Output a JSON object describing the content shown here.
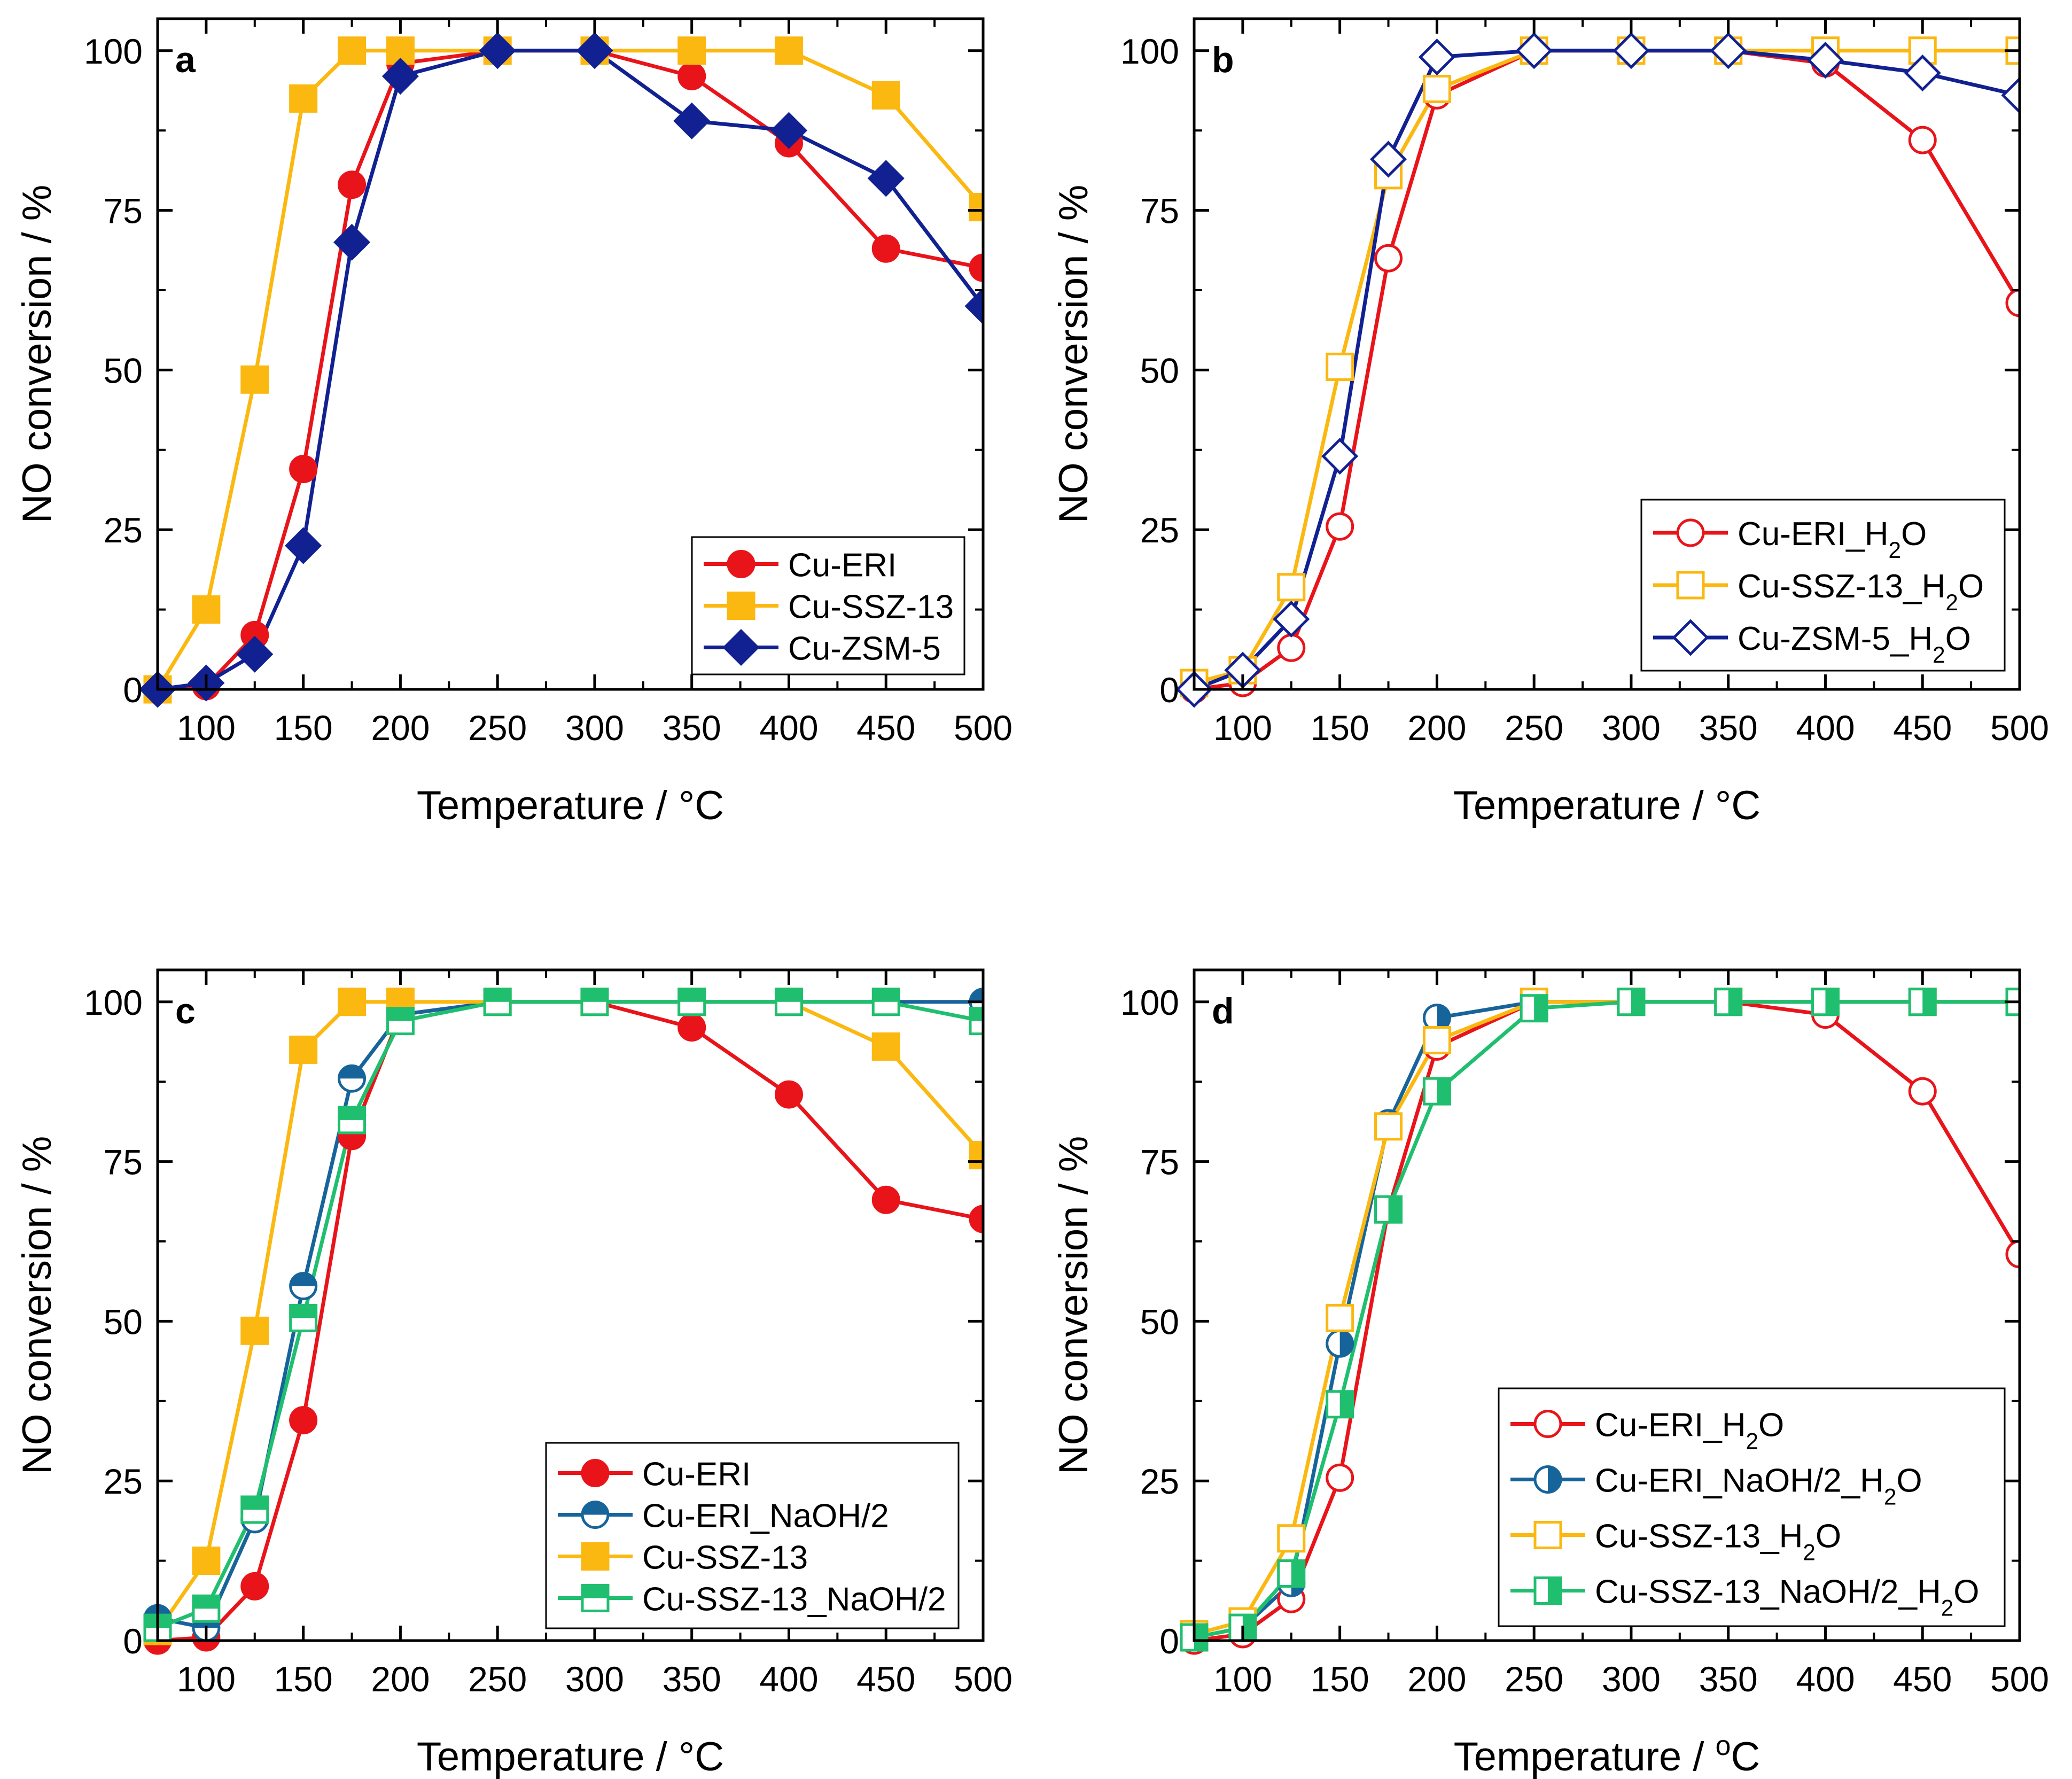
{
  "colors": {
    "red": "#e8141a",
    "yellow": "#fbb811",
    "navy": "#112191",
    "teal": "#17649b",
    "green": "#1fbf6f"
  },
  "chart_data": [
    {
      "type": "line",
      "panel": "a",
      "xlabel": "Temperature / °C",
      "ylabel": "NO conversion / %",
      "xlim": [
        75,
        500
      ],
      "ylim": [
        0,
        105
      ],
      "xticks": [
        100,
        150,
        200,
        250,
        300,
        350,
        400,
        450,
        500
      ],
      "yticks": [
        0,
        25,
        50,
        75,
        100
      ],
      "legend_position": "bottom-right",
      "series": [
        {
          "name": "Cu-ERI",
          "color": "red",
          "marker": "circle",
          "fill": "full",
          "x": [
            75,
            100,
            125,
            150,
            175,
            200,
            250,
            300,
            350,
            400,
            450,
            500
          ],
          "values": [
            0,
            0.5,
            8.5,
            34.5,
            79,
            98,
            100,
            100,
            96,
            85.5,
            69,
            66
          ]
        },
        {
          "name": "Cu-SSZ-13",
          "color": "yellow",
          "marker": "square",
          "fill": "full",
          "x": [
            75,
            100,
            125,
            150,
            175,
            200,
            250,
            300,
            350,
            400,
            450,
            500
          ],
          "values": [
            0,
            12.5,
            48.5,
            92.5,
            100,
            100,
            100,
            100,
            100,
            100,
            93,
            75.5
          ]
        },
        {
          "name": "Cu-ZSM-5",
          "color": "navy",
          "marker": "diamond",
          "fill": "full",
          "x": [
            75,
            100,
            125,
            150,
            175,
            200,
            250,
            300,
            350,
            400,
            450,
            500
          ],
          "values": [
            0,
            1,
            5.5,
            22.5,
            70,
            96,
            100,
            100,
            89,
            87.5,
            80,
            60
          ]
        }
      ]
    },
    {
      "type": "line",
      "panel": "b",
      "xlabel": "Temperature / °C",
      "ylabel": "NO conversion / %",
      "xlim": [
        75,
        500
      ],
      "ylim": [
        0,
        105
      ],
      "xticks": [
        100,
        150,
        200,
        250,
        300,
        350,
        400,
        450,
        500
      ],
      "yticks": [
        0,
        25,
        50,
        75,
        100
      ],
      "legend_position": "bottom-right",
      "series": [
        {
          "name": "Cu-ERI_H",
          "name_sub": "2",
          "name_suffix": "O",
          "color": "red",
          "marker": "circle",
          "fill": "none",
          "x": [
            75,
            100,
            125,
            150,
            175,
            200,
            250,
            300,
            350,
            400,
            450,
            500
          ],
          "values": [
            0,
            1,
            6.5,
            25.5,
            67.5,
            93,
            100,
            100,
            100,
            98,
            86,
            60.5
          ]
        },
        {
          "name": "Cu-SSZ-13_H",
          "name_sub": "2",
          "name_suffix": "O",
          "color": "yellow",
          "marker": "square",
          "fill": "none",
          "x": [
            75,
            100,
            125,
            150,
            175,
            200,
            250,
            300,
            350,
            400,
            450,
            500
          ],
          "values": [
            1,
            3,
            16,
            50.5,
            80.5,
            94,
            100,
            100,
            100,
            100,
            100,
            100
          ]
        },
        {
          "name": "Cu-ZSM-5_H",
          "name_sub": "2",
          "name_suffix": "O",
          "color": "navy",
          "marker": "diamond",
          "fill": "none",
          "x": [
            75,
            100,
            125,
            150,
            175,
            200,
            250,
            300,
            350,
            400,
            450,
            500
          ],
          "values": [
            0,
            3,
            11,
            36.5,
            83,
            99,
            100,
            100,
            100,
            98.5,
            96.5,
            93
          ]
        }
      ]
    },
    {
      "type": "line",
      "panel": "c",
      "xlabel": "Temperature / °C",
      "ylabel": "NO conversion / %",
      "xlim": [
        75,
        500
      ],
      "ylim": [
        0,
        105
      ],
      "xticks": [
        100,
        150,
        200,
        250,
        300,
        350,
        400,
        450,
        500
      ],
      "yticks": [
        0,
        25,
        50,
        75,
        100
      ],
      "legend_position": "bottom-right",
      "series": [
        {
          "name": "Cu-ERI",
          "color": "red",
          "marker": "circle",
          "fill": "full",
          "x": [
            75,
            100,
            125,
            150,
            175,
            200,
            250,
            300,
            350,
            400,
            450,
            500
          ],
          "values": [
            0,
            0.5,
            8.5,
            34.5,
            79,
            98,
            100,
            100,
            96,
            85.5,
            69,
            66
          ]
        },
        {
          "name": "Cu-ERI_NaOH/2",
          "color": "teal",
          "marker": "circle",
          "fill": "top",
          "x": [
            75,
            100,
            125,
            150,
            175,
            200,
            250,
            300,
            350,
            400,
            450,
            500
          ],
          "values": [
            3.5,
            2,
            19,
            55.5,
            88,
            98,
            100,
            100,
            100,
            100,
            100,
            100
          ]
        },
        {
          "name": "Cu-SSZ-13",
          "color": "yellow",
          "marker": "square",
          "fill": "full",
          "x": [
            75,
            100,
            125,
            150,
            175,
            200,
            250,
            300,
            350,
            400,
            450,
            500
          ],
          "values": [
            1.5,
            12.5,
            48.5,
            92.5,
            100,
            100,
            100,
            100,
            100,
            100,
            93,
            76
          ]
        },
        {
          "name": "Cu-SSZ-13_NaOH/2",
          "color": "green",
          "marker": "square",
          "fill": "top",
          "x": [
            75,
            100,
            125,
            150,
            175,
            200,
            250,
            300,
            350,
            400,
            450,
            500
          ],
          "values": [
            2,
            5,
            20.5,
            50.5,
            81.5,
            97,
            100,
            100,
            100,
            100,
            100,
            97
          ]
        }
      ]
    },
    {
      "type": "line",
      "panel": "d",
      "xlabel": "Temperature / ",
      "xlabel_sup": "o",
      "xlabel_suffix": "C",
      "ylabel": "NO conversion / %",
      "xlim": [
        75,
        500
      ],
      "ylim": [
        0,
        105
      ],
      "xticks": [
        100,
        150,
        200,
        250,
        300,
        350,
        400,
        450,
        500
      ],
      "yticks": [
        0,
        25,
        50,
        75,
        100
      ],
      "legend_position": "bottom-right",
      "series": [
        {
          "name": "Cu-ERI_H",
          "name_sub": "2",
          "name_suffix": "O",
          "color": "red",
          "marker": "circle",
          "fill": "none",
          "x": [
            75,
            100,
            125,
            150,
            175,
            200,
            250,
            300,
            350,
            400,
            450,
            500
          ],
          "values": [
            0,
            1,
            6.5,
            25.5,
            67.5,
            93,
            100,
            100,
            100,
            98,
            86,
            60.5
          ]
        },
        {
          "name": "Cu-ERI_NaOH/2_H",
          "name_sub": "2",
          "name_suffix": "O",
          "color": "teal",
          "marker": "circle",
          "fill": "right",
          "x": [
            75,
            100,
            125,
            150,
            175,
            200,
            250,
            300,
            350,
            400,
            450,
            500
          ],
          "values": [
            0.5,
            2,
            9,
            46.5,
            81,
            97.5,
            100,
            100,
            100,
            100,
            100,
            100
          ]
        },
        {
          "name": "Cu-SSZ-13_H",
          "name_sub": "2",
          "name_suffix": "O",
          "color": "yellow",
          "marker": "square",
          "fill": "none",
          "x": [
            75,
            100,
            125,
            150,
            175,
            200,
            250,
            300,
            350,
            400,
            450,
            500
          ],
          "values": [
            1,
            3,
            16,
            50.5,
            80.5,
            94,
            100,
            100,
            100,
            100,
            100,
            100
          ]
        },
        {
          "name": "Cu-SSZ-13_NaOH/2_H",
          "name_sub": "2",
          "name_suffix": "O",
          "color": "green",
          "marker": "square",
          "fill": "right",
          "x": [
            75,
            100,
            125,
            150,
            175,
            200,
            250,
            300,
            350,
            400,
            450,
            500
          ],
          "values": [
            0.5,
            2,
            10.5,
            37,
            67.5,
            86,
            99,
            100,
            100,
            100,
            100,
            100
          ]
        }
      ]
    }
  ]
}
